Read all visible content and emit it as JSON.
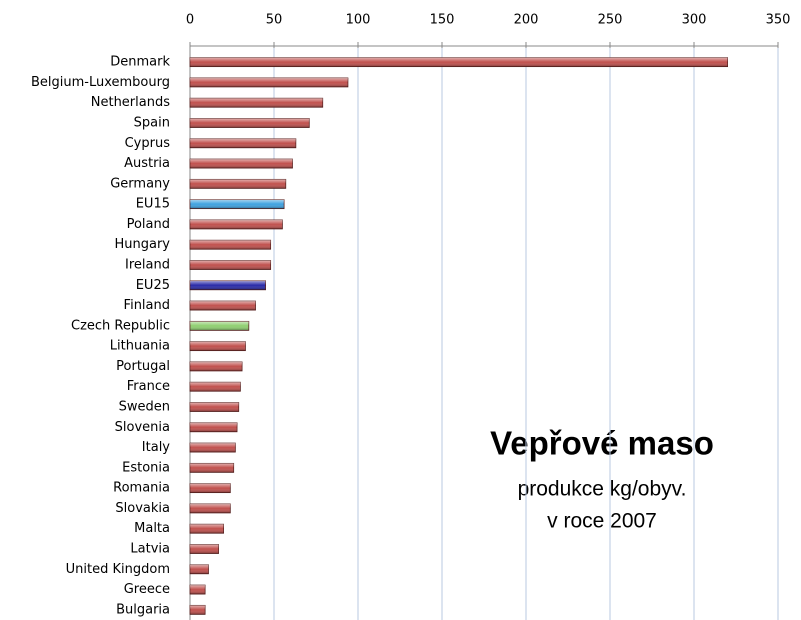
{
  "chart_data": {
    "type": "bar",
    "orientation": "horizontal",
    "title": "Vepřové maso",
    "subtitle": "produkce kg/obyv.",
    "annotation": "v roce 2007",
    "categories": [
      "Denmark",
      "Belgium-Luxembourg",
      "Netherlands",
      "Spain",
      "Cyprus",
      "Austria",
      "Germany",
      "EU15",
      "Poland",
      "Hungary",
      "Ireland",
      "EU25",
      "Finland",
      "Czech Republic",
      "Lithuania",
      "Portugal",
      "France",
      "Sweden",
      "Slovenia",
      "Italy",
      "Estonia",
      "Romania",
      "Slovakia",
      "Malta",
      "Latvia",
      "United Kingdom",
      "Greece",
      "Bulgaria"
    ],
    "values": [
      320,
      94,
      79,
      71,
      63,
      61,
      57,
      56,
      55,
      48,
      48,
      45,
      39,
      35,
      33,
      31,
      30,
      29,
      28,
      27,
      26,
      24,
      24,
      20,
      17,
      11,
      9,
      9
    ],
    "colors": [
      "#c0504d",
      "#c0504d",
      "#c0504d",
      "#c0504d",
      "#c0504d",
      "#c0504d",
      "#c0504d",
      "#3fa2e0",
      "#c0504d",
      "#c0504d",
      "#c0504d",
      "#2a2aa8",
      "#c0504d",
      "#8fcf70",
      "#c0504d",
      "#c0504d",
      "#c0504d",
      "#c0504d",
      "#c0504d",
      "#c0504d",
      "#c0504d",
      "#c0504d",
      "#c0504d",
      "#c0504d",
      "#c0504d",
      "#c0504d",
      "#c0504d",
      "#c0504d"
    ],
    "xlim": [
      0,
      350
    ],
    "xticks": [
      0,
      50,
      100,
      150,
      200,
      250,
      300,
      350
    ],
    "grid": true
  }
}
